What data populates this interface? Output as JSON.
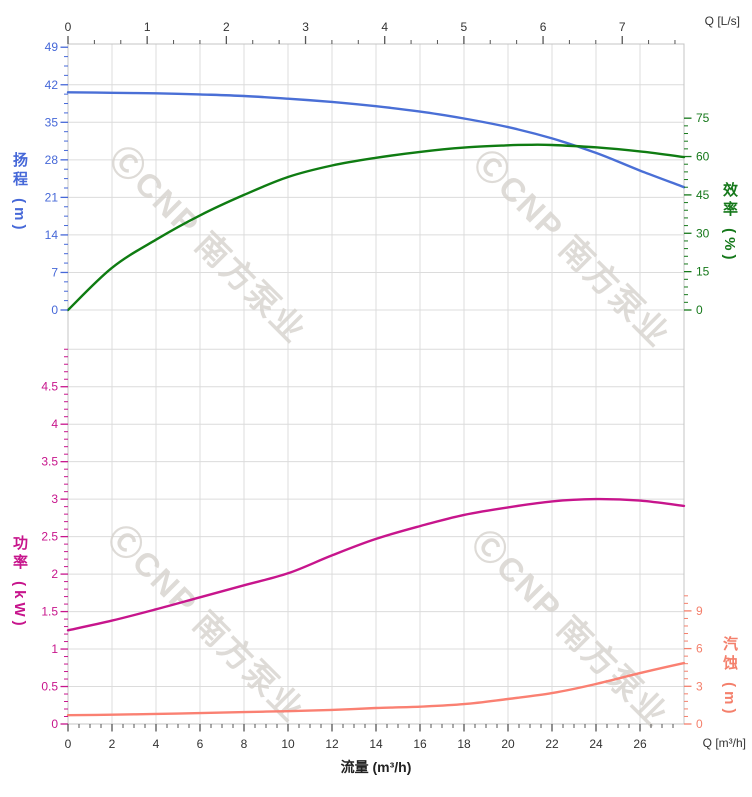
{
  "watermark": {
    "logo_icon": "cnp-logo-icon",
    "logo_glyph": "Ⓒ",
    "text": "CNP 南方泵业",
    "color": "#d6d3ce"
  },
  "chart_data": {
    "type": "line",
    "title": "",
    "grid": true,
    "legend": "none",
    "x_axis_bottom": {
      "label": "流量 (m³/h)",
      "unit_label": "Q [m³/h]",
      "tick_values": [
        0,
        2,
        4,
        6,
        8,
        10,
        12,
        14,
        16,
        18,
        20,
        22,
        24,
        26
      ],
      "minor_step": 0.5,
      "minor_max": 27.6,
      "range": [
        0,
        28
      ],
      "color": "#333333"
    },
    "x_axis_top": {
      "unit_label": "Q [L/s]",
      "tick_values": [
        0,
        1,
        2,
        3,
        4,
        5,
        6,
        7
      ],
      "minor_step": 0.3333,
      "minor_max": 7.7,
      "range": [
        0,
        7.78
      ],
      "color": "#333333"
    },
    "y_axis_head": {
      "label": "扬程 (m)",
      "color": "#4668d8",
      "tick_values": [
        0,
        7,
        14,
        21,
        28,
        35,
        42,
        49
      ],
      "minor_step": 1.75,
      "minor_max": 49,
      "range": [
        0,
        49.6
      ],
      "region": "upper"
    },
    "y_axis_efficiency": {
      "label": "效率 (%)",
      "color": "#15781a",
      "tick_values": [
        0,
        15,
        30,
        45,
        60,
        75
      ],
      "minor_step": 3,
      "minor_max": 75,
      "range": [
        0,
        104
      ],
      "region": "upper"
    },
    "y_axis_power": {
      "label": "功率 (kW)",
      "color": "#c7158c",
      "tick_values": [
        0,
        0.5,
        1,
        1.5,
        2,
        2.5,
        3,
        3.5,
        4,
        4.5
      ],
      "tick_labels": [
        "0",
        "0.5",
        "1",
        "1.5",
        "2",
        "2.5",
        "3",
        "3.5",
        "4",
        "4.5"
      ],
      "minor_step": 0.1,
      "minor_max": 5.0,
      "range": [
        0,
        5.03
      ],
      "region": "lower"
    },
    "y_axis_npsh": {
      "label": "汽蚀 (m)",
      "color": "#f4806c",
      "tick_values": [
        0,
        3,
        6,
        9
      ],
      "minor_step": 0.6,
      "minor_max": 10.2,
      "range": [
        0,
        30
      ],
      "region": "lower"
    },
    "series": [
      {
        "name": "head-curve",
        "axis": "y_axis_head",
        "color": "#4a6fd6",
        "points": [
          [
            0,
            40.6
          ],
          [
            2,
            40.5
          ],
          [
            4,
            40.4
          ],
          [
            6,
            40.2
          ],
          [
            8,
            39.9
          ],
          [
            10,
            39.4
          ],
          [
            12,
            38.8
          ],
          [
            14,
            38.0
          ],
          [
            16,
            37.0
          ],
          [
            18,
            35.7
          ],
          [
            20,
            34.1
          ],
          [
            22,
            32.0
          ],
          [
            24,
            29.3
          ],
          [
            26,
            26.0
          ],
          [
            28,
            22.9
          ]
        ]
      },
      {
        "name": "efficiency-curve",
        "axis": "y_axis_efficiency",
        "color": "#0f7c12",
        "points": [
          [
            0,
            0
          ],
          [
            2,
            16.5
          ],
          [
            4,
            27.5
          ],
          [
            6,
            37
          ],
          [
            8,
            45
          ],
          [
            10,
            52
          ],
          [
            12,
            56.5
          ],
          [
            14,
            59.5
          ],
          [
            16,
            61.8
          ],
          [
            18,
            63.5
          ],
          [
            20,
            64.4
          ],
          [
            21,
            64.6
          ],
          [
            22,
            64.5
          ],
          [
            24,
            63.6
          ],
          [
            26,
            62
          ],
          [
            28,
            59.8
          ]
        ]
      },
      {
        "name": "power-curve",
        "axis": "y_axis_power",
        "color": "#c7158c",
        "points": [
          [
            0,
            1.25
          ],
          [
            2,
            1.38
          ],
          [
            4,
            1.53
          ],
          [
            6,
            1.69
          ],
          [
            8,
            1.85
          ],
          [
            10,
            2.01
          ],
          [
            12,
            2.25
          ],
          [
            14,
            2.47
          ],
          [
            16,
            2.64
          ],
          [
            18,
            2.79
          ],
          [
            20,
            2.89
          ],
          [
            22,
            2.97
          ],
          [
            24,
            3.0
          ],
          [
            26,
            2.98
          ],
          [
            28,
            2.91
          ]
        ]
      },
      {
        "name": "npsh-curve",
        "axis": "y_axis_npsh",
        "color": "#fa8072",
        "points": [
          [
            0,
            0.7
          ],
          [
            2,
            0.74
          ],
          [
            4,
            0.8
          ],
          [
            6,
            0.87
          ],
          [
            8,
            0.95
          ],
          [
            10,
            1.02
          ],
          [
            12,
            1.12
          ],
          [
            14,
            1.27
          ],
          [
            16,
            1.38
          ],
          [
            18,
            1.58
          ],
          [
            20,
            1.99
          ],
          [
            22,
            2.46
          ],
          [
            24,
            3.18
          ],
          [
            26,
            4.05
          ],
          [
            28,
            4.85
          ]
        ]
      }
    ]
  }
}
